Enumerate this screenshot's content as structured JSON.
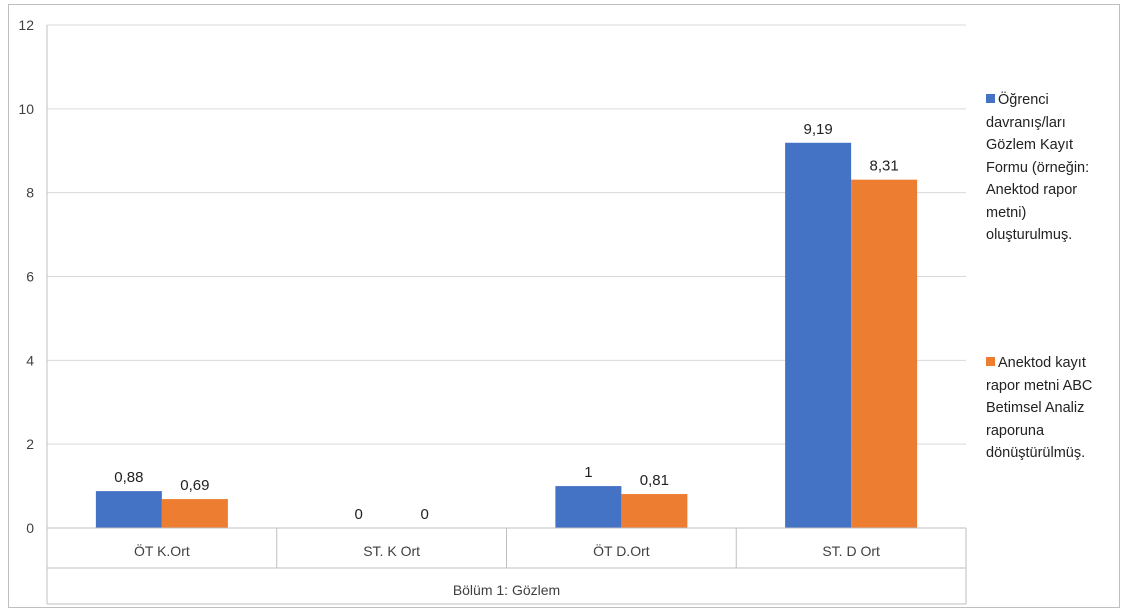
{
  "chart_data": {
    "type": "bar",
    "categories": [
      "ÖT K.Ort",
      "ST. K Ort",
      "ÖT D.Ort",
      "ST. D Ort"
    ],
    "group_label": "Bölüm 1: Gözlem",
    "series": [
      {
        "name": "Öğrenci davranış/ları Gözlem Kayıt Formu (örneğin: Anektod rapor metni) oluşturulmuş.",
        "color": "#4472c4",
        "values": [
          0.88,
          0,
          1,
          9.19
        ],
        "labels": [
          "0,88",
          "0",
          "1",
          "9,19"
        ]
      },
      {
        "name": "Anektod kayıt rapor metni ABC Betimsel Analiz raporuna dönüştürülmüş.",
        "color": "#ed7d31",
        "values": [
          0.69,
          0,
          0.81,
          8.31
        ],
        "labels": [
          "0,69",
          "0",
          "0,81",
          "8,31"
        ]
      }
    ],
    "ylim": [
      0,
      12
    ],
    "yticks": [
      0,
      2,
      4,
      6,
      8,
      10,
      12
    ],
    "grid": true,
    "legend_position": "right"
  },
  "legend": {
    "items": [
      {
        "lines": [
          "Öğrenci",
          "davranış/ları",
          "Gözlem Kayıt",
          "Formu (örneğin:",
          "Anektod rapor",
          "metni)",
          "oluşturulmuş."
        ]
      },
      {
        "lines": [
          "Anektod kayıt",
          "rapor metni ABC",
          "Betimsel Analiz",
          "raporuna",
          "dönüştürülmüş."
        ]
      }
    ]
  }
}
